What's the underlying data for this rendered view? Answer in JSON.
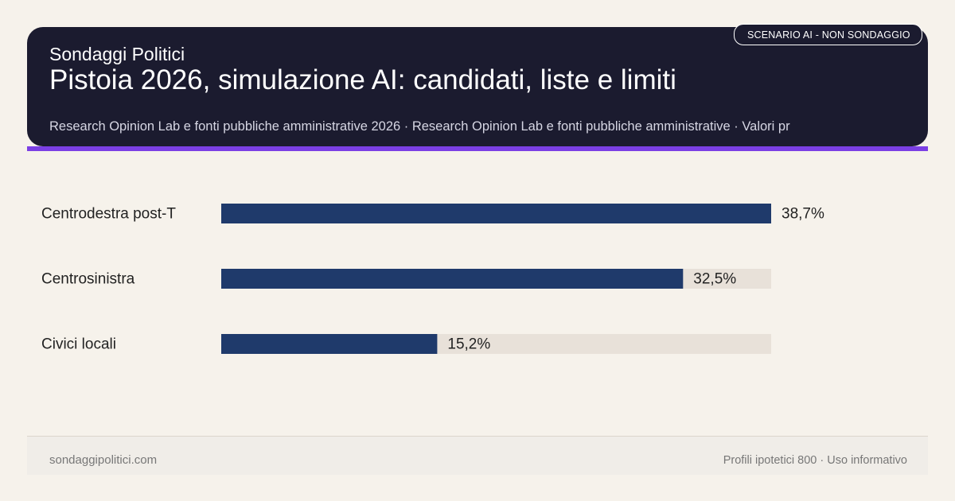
{
  "header": {
    "brand": "Sondaggi Politici",
    "title": "Pistoia 2026, simulazione AI: candidati, liste e limiti",
    "source": "Research Opinion Lab e fonti pubbliche amministrative 2026 · Research Opinion Lab e fonti pubbliche amministrative · Valori pr",
    "badge": "SCENARIO AI - NON SONDAGGIO"
  },
  "colors": {
    "header_bg": "#1b1b2f",
    "accent": "#7b3fe4",
    "bar": "#1f3a6b",
    "track": "#e8e1d9",
    "background": "#f6f2eb"
  },
  "chart_data": {
    "type": "bar",
    "orientation": "horizontal",
    "categories": [
      "Centrodestra post-T",
      "Centrosinistra",
      "Civici locali"
    ],
    "values": [
      38.7,
      32.5,
      15.2
    ],
    "value_labels": [
      "38,7%",
      "32,5%",
      "15,2%"
    ],
    "xlim": [
      0,
      38.7
    ],
    "grid": false,
    "legend": "none"
  },
  "footer": {
    "site": "sondaggipolitici.com",
    "note": "Profili ipotetici 800 · Uso informativo"
  }
}
